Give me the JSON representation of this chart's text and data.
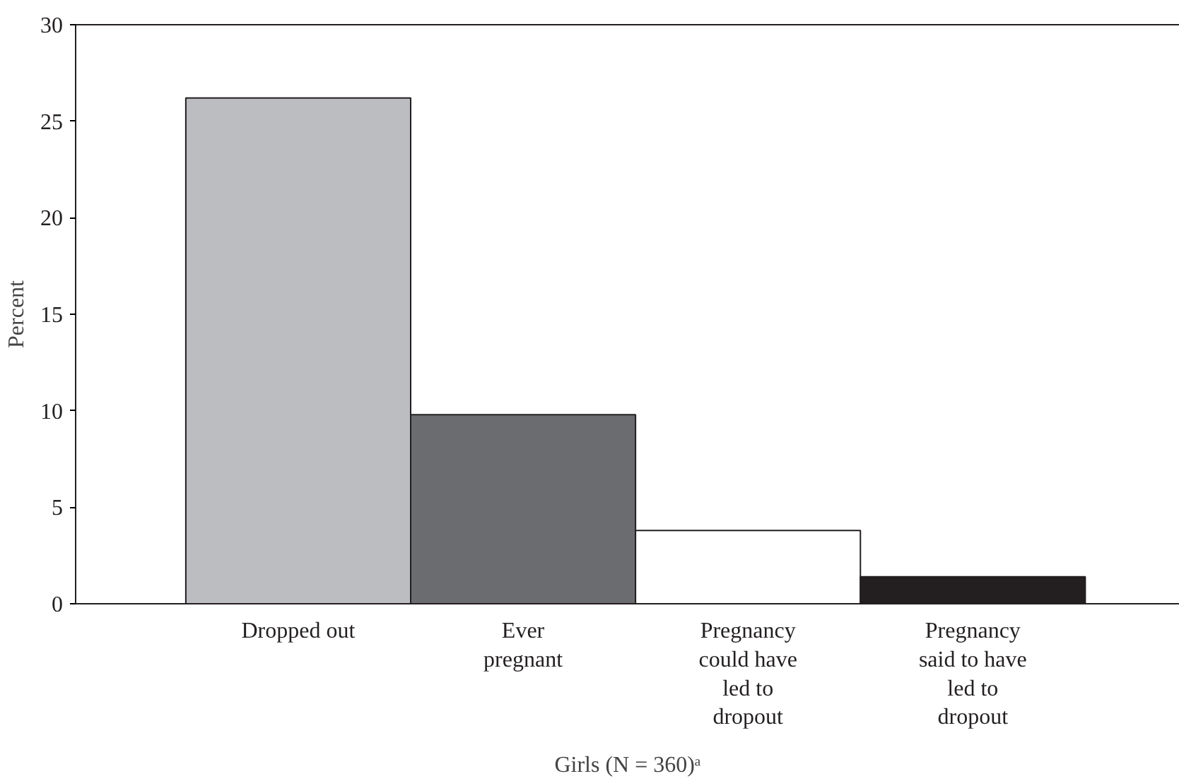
{
  "chart_data": {
    "type": "bar",
    "xlabel": "Girls (N = 360)ᵃ",
    "ylabel": "Percent",
    "categories": [
      "Dropped out",
      "Ever\npregnant",
      "Pregnancy\ncould have\nled to\ndropout",
      "Pregnancy\nsaid to have\nled to\ndropout"
    ],
    "values": [
      26.2,
      9.8,
      3.8,
      1.4
    ],
    "colors": [
      "#bcbdc1",
      "#6b6c70",
      "#ffffff",
      "#231f20"
    ],
    "ylim": [
      0,
      30
    ],
    "yticks": [
      0,
      5,
      10,
      15,
      20,
      25,
      30
    ],
    "grid": false
  }
}
